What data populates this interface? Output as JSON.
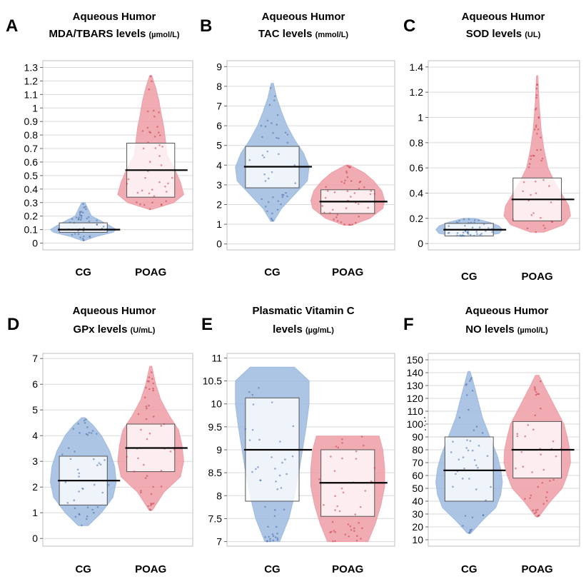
{
  "palette": {
    "cg": "#9fbbe0",
    "cg_dot": "#4b6fa8",
    "poag": "#ef9ea6",
    "poag_dot": "#c2414f",
    "box_fill": "#ffffff",
    "mean_line": "#000000",
    "grid": "#d9d9d9",
    "frame": "#bfbfbf"
  },
  "chart_data": [
    {
      "type": "violin-box",
      "letter": "A",
      "title_line1": "Aqueous Humor",
      "title_line2": "MDA/TBARS  levels",
      "unit": "(µmol/L)",
      "ylim": [
        -0.05,
        1.35
      ],
      "yticks": [
        "0",
        "0.1",
        "0.2",
        "0.3",
        "0.4",
        "0.5",
        "0.6",
        "0.7",
        "0.8",
        "0.9",
        "1",
        "1.1",
        "1.2",
        "1.3"
      ],
      "categories": [
        "CG",
        "POAG"
      ],
      "groups": [
        {
          "name": "CG",
          "min": 0.02,
          "max": 0.3,
          "q1": 0.08,
          "q3": 0.15,
          "center": 0.1,
          "shape": [
            [
              0.02,
              0.05
            ],
            [
              0.05,
              0.4
            ],
            [
              0.08,
              0.9
            ],
            [
              0.1,
              1.0
            ],
            [
              0.13,
              0.8
            ],
            [
              0.17,
              0.5
            ],
            [
              0.2,
              0.25
            ],
            [
              0.25,
              0.15
            ],
            [
              0.3,
              0.05
            ]
          ]
        },
        {
          "name": "POAG",
          "min": 0.25,
          "max": 1.24,
          "q1": 0.34,
          "q3": 0.74,
          "center": 0.54,
          "shape": [
            [
              0.25,
              0.05
            ],
            [
              0.3,
              0.7
            ],
            [
              0.36,
              1.0
            ],
            [
              0.45,
              0.9
            ],
            [
              0.55,
              0.72
            ],
            [
              0.65,
              0.5
            ],
            [
              0.75,
              0.45
            ],
            [
              0.85,
              0.4
            ],
            [
              0.95,
              0.32
            ],
            [
              1.05,
              0.25
            ],
            [
              1.15,
              0.15
            ],
            [
              1.24,
              0.03
            ]
          ]
        }
      ]
    },
    {
      "type": "violin-box",
      "letter": "B",
      "title_line1": "Aqueous Humor",
      "title_line2": "TAC levels",
      "unit": "(mmol/L)",
      "ylim": [
        -0.3,
        9.3
      ],
      "yticks": [
        "0",
        "1",
        "2",
        "3",
        "4",
        "5",
        "6",
        "7",
        "8",
        "9"
      ],
      "categories": [
        "CG",
        "POAG"
      ],
      "groups": [
        {
          "name": "CG",
          "min": 1.15,
          "max": 8.15,
          "q1": 2.85,
          "q3": 4.95,
          "center": 3.92,
          "shape": [
            [
              1.15,
              0.04
            ],
            [
              1.8,
              0.25
            ],
            [
              2.5,
              0.6
            ],
            [
              3.2,
              0.95
            ],
            [
              3.9,
              1.0
            ],
            [
              4.6,
              0.85
            ],
            [
              5.3,
              0.6
            ],
            [
              6.0,
              0.4
            ],
            [
              6.7,
              0.25
            ],
            [
              7.4,
              0.12
            ],
            [
              8.15,
              0.03
            ]
          ]
        },
        {
          "name": "POAG",
          "min": 0.95,
          "max": 4.0,
          "q1": 1.55,
          "q3": 2.75,
          "center": 2.15,
          "shape": [
            [
              0.95,
              0.1
            ],
            [
              1.3,
              0.6
            ],
            [
              1.8,
              0.95
            ],
            [
              2.2,
              1.0
            ],
            [
              2.7,
              0.92
            ],
            [
              3.2,
              0.7
            ],
            [
              3.6,
              0.45
            ],
            [
              4.0,
              0.05
            ]
          ]
        }
      ]
    },
    {
      "type": "violin-box",
      "letter": "C",
      "title_line1": "Aqueous Humor",
      "title_line2": "SOD levels",
      "unit": "(UL)",
      "ylim": [
        -0.05,
        1.45
      ],
      "yticks": [
        "0",
        "0.2",
        "0.4",
        "0.6",
        "0.8",
        "1",
        "1.2",
        "1.4"
      ],
      "categories": [
        "CG",
        "POAG"
      ],
      "groups": [
        {
          "name": "CG",
          "min": 0.06,
          "max": 0.2,
          "q1": 0.06,
          "q3": 0.16,
          "center": 0.11,
          "shape": [
            [
              0.06,
              0.4
            ],
            [
              0.08,
              0.9
            ],
            [
              0.11,
              1.0
            ],
            [
              0.14,
              0.9
            ],
            [
              0.17,
              0.6
            ],
            [
              0.2,
              0.15
            ]
          ]
        },
        {
          "name": "POAG",
          "min": 0.09,
          "max": 1.33,
          "q1": 0.18,
          "q3": 0.52,
          "center": 0.35,
          "shape": [
            [
              0.09,
              0.2
            ],
            [
              0.15,
              0.8
            ],
            [
              0.22,
              1.0
            ],
            [
              0.3,
              0.95
            ],
            [
              0.4,
              0.72
            ],
            [
              0.5,
              0.5
            ],
            [
              0.6,
              0.32
            ],
            [
              0.75,
              0.2
            ],
            [
              0.9,
              0.12
            ],
            [
              1.1,
              0.06
            ],
            [
              1.33,
              0.02
            ]
          ]
        }
      ]
    },
    {
      "type": "violin-box",
      "letter": "D",
      "title_line1": "Aqueous Humor",
      "title_line2": "GPx levels",
      "unit": "(U/mL)",
      "ylim": [
        -0.3,
        7.2
      ],
      "yticks": [
        "0",
        "1",
        "2",
        "3",
        "4",
        "5",
        "6",
        "7"
      ],
      "categories": [
        "CG",
        "POAG"
      ],
      "groups": [
        {
          "name": "CG",
          "min": 0.5,
          "max": 4.7,
          "q1": 1.3,
          "q3": 3.2,
          "center": 2.25,
          "shape": [
            [
              0.5,
              0.15
            ],
            [
              1.0,
              0.55
            ],
            [
              1.6,
              0.9
            ],
            [
              2.2,
              1.0
            ],
            [
              2.8,
              0.95
            ],
            [
              3.4,
              0.8
            ],
            [
              4.0,
              0.55
            ],
            [
              4.4,
              0.3
            ],
            [
              4.7,
              0.05
            ]
          ]
        },
        {
          "name": "POAG",
          "min": 1.1,
          "max": 6.7,
          "q1": 2.6,
          "q3": 4.45,
          "center": 3.52,
          "shape": [
            [
              1.1,
              0.05
            ],
            [
              1.8,
              0.4
            ],
            [
              2.4,
              0.9
            ],
            [
              3.0,
              1.0
            ],
            [
              3.6,
              0.95
            ],
            [
              4.2,
              0.85
            ],
            [
              4.8,
              0.55
            ],
            [
              5.4,
              0.3
            ],
            [
              6.0,
              0.15
            ],
            [
              6.7,
              0.03
            ]
          ]
        }
      ]
    },
    {
      "type": "violin-box",
      "letter": "E",
      "title_line1": "Plasmatic  Vitamin C",
      "title_line2": "levels",
      "unit": "(µg/mL)",
      "ylim": [
        6.9,
        11.1
      ],
      "yticks": [
        "7",
        "7.5",
        "8",
        "8.5",
        "9",
        "9.5",
        "10",
        "10.5",
        "11"
      ],
      "categories": [
        "CG",
        "POAG"
      ],
      "groups": [
        {
          "name": "CG",
          "min": 7.0,
          "max": 10.8,
          "q1": 7.88,
          "q3": 10.13,
          "center": 9.0,
          "shape": [
            [
              7.0,
              0.2
            ],
            [
              7.5,
              0.45
            ],
            [
              8.0,
              0.6
            ],
            [
              8.5,
              0.72
            ],
            [
              9.0,
              0.82
            ],
            [
              9.5,
              0.92
            ],
            [
              10.0,
              1.0
            ],
            [
              10.5,
              1.0
            ],
            [
              10.8,
              0.6
            ]
          ]
        },
        {
          "name": "POAG",
          "min": 7.0,
          "max": 9.3,
          "q1": 7.55,
          "q3": 9.0,
          "center": 8.28,
          "shape": [
            [
              7.0,
              0.55
            ],
            [
              7.4,
              0.75
            ],
            [
              7.8,
              0.9
            ],
            [
              8.2,
              1.0
            ],
            [
              8.6,
              1.0
            ],
            [
              9.0,
              0.95
            ],
            [
              9.3,
              0.85
            ]
          ]
        }
      ]
    },
    {
      "type": "violin-box",
      "letter": "F",
      "title_line1": "Aqueous Humor",
      "title_line2": "NO levels",
      "unit": "(µmol/L)",
      "ylim": [
        5,
        155
      ],
      "yticks": [
        "10",
        "20",
        "30",
        "40",
        "50",
        "60",
        "70",
        "80",
        "90",
        "100",
        "110",
        "120",
        "130",
        "140",
        "150"
      ],
      "categories": [
        "CG",
        "POAG"
      ],
      "groups": [
        {
          "name": "CG",
          "min": 15,
          "max": 141,
          "q1": 40,
          "q3": 90,
          "center": 64,
          "shape": [
            [
              15,
              0.05
            ],
            [
              25,
              0.4
            ],
            [
              35,
              0.8
            ],
            [
              45,
              0.95
            ],
            [
              55,
              1.0
            ],
            [
              65,
              0.95
            ],
            [
              75,
              0.85
            ],
            [
              85,
              0.7
            ],
            [
              95,
              0.55
            ],
            [
              105,
              0.4
            ],
            [
              115,
              0.3
            ],
            [
              125,
              0.2
            ],
            [
              135,
              0.1
            ],
            [
              141,
              0.03
            ]
          ]
        },
        {
          "name": "POAG",
          "min": 28,
          "max": 138,
          "q1": 58,
          "q3": 102,
          "center": 80,
          "shape": [
            [
              28,
              0.05
            ],
            [
              40,
              0.4
            ],
            [
              50,
              0.75
            ],
            [
              60,
              0.9
            ],
            [
              70,
              1.0
            ],
            [
              80,
              0.98
            ],
            [
              90,
              0.9
            ],
            [
              100,
              0.8
            ],
            [
              110,
              0.6
            ],
            [
              120,
              0.4
            ],
            [
              130,
              0.2
            ],
            [
              138,
              0.05
            ]
          ]
        }
      ]
    }
  ]
}
